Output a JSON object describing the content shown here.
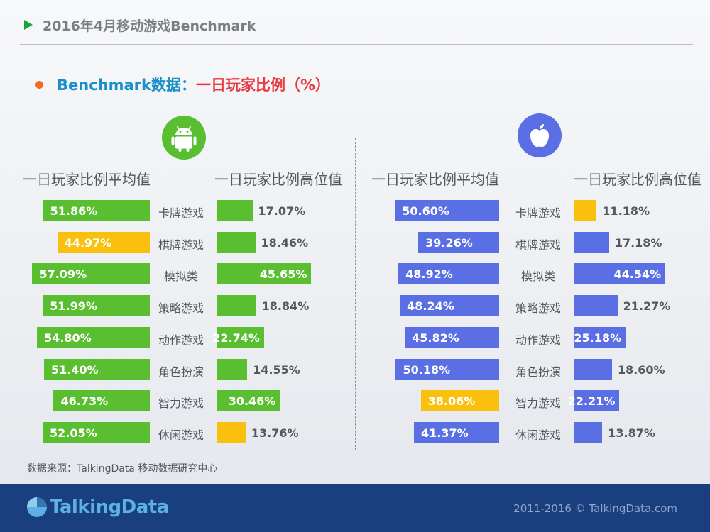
{
  "header": {
    "title": "2016年4月移动游戏Benchmark"
  },
  "subtitle": {
    "part1": "Benchmark数据：",
    "part2": "一日玩家比例（%）"
  },
  "colors": {
    "android": "#5abf30",
    "ios": "#5a6fe4",
    "highlight": "#f9c10e"
  },
  "android": {
    "icon": "android-icon",
    "avg_header": "一日玩家比例平均值",
    "high_header": "一日玩家比例高位值"
  },
  "ios": {
    "icon": "apple-icon",
    "avg_header": "一日玩家比例平均值",
    "high_header": "一日玩家比例高位值"
  },
  "chart_data": [
    {
      "type": "bar",
      "platform": "Android",
      "categories": [
        "卡牌游戏",
        "棋牌游戏",
        "模拟类",
        "策略游戏",
        "动作游戏",
        "角色扮演",
        "智力游戏",
        "休闲游戏"
      ],
      "series": [
        {
          "name": "一日玩家比例平均值",
          "values": [
            51.86,
            44.97,
            57.09,
            51.99,
            54.8,
            51.4,
            46.73,
            52.05
          ],
          "labels": [
            "51.86%",
            "44.97%",
            "57.09%",
            "51.99%",
            "54.80%",
            "51.40%",
            "46.73%",
            "52.05%"
          ],
          "highlight_index": 1
        },
        {
          "name": "一日玩家比例高位值",
          "values": [
            17.07,
            18.46,
            45.65,
            18.84,
            22.74,
            14.55,
            30.46,
            13.76
          ],
          "labels": [
            "17.07%",
            "18.46%",
            "45.65%",
            "18.84%",
            "22.74%",
            "14.55%",
            "30.46%",
            "13.76%"
          ],
          "highlight_index": 7
        }
      ]
    },
    {
      "type": "bar",
      "platform": "iOS",
      "categories": [
        "卡牌游戏",
        "棋牌游戏",
        "模拟类",
        "策略游戏",
        "动作游戏",
        "角色扮演",
        "智力游戏",
        "休闲游戏"
      ],
      "series": [
        {
          "name": "一日玩家比例平均值",
          "values": [
            50.6,
            39.26,
            48.92,
            48.24,
            45.82,
            50.18,
            38.06,
            41.37
          ],
          "labels": [
            "50.60%",
            "39.26%",
            "48.92%",
            "48.24%",
            "45.82%",
            "50.18%",
            "38.06%",
            "41.37%"
          ],
          "highlight_index": 6
        },
        {
          "name": "一日玩家比例高位值",
          "values": [
            11.18,
            17.18,
            44.54,
            21.27,
            25.18,
            18.6,
            22.21,
            13.87
          ],
          "labels": [
            "11.18%",
            "17.18%",
            "44.54%",
            "21.27%",
            "25.18%",
            "18.60%",
            "22.21%",
            "13.87%"
          ],
          "highlight_index": 0
        }
      ]
    }
  ],
  "source": "数据来源：TalkingData 移动数据研究中心",
  "footer": {
    "logo": "TalkingData",
    "copyright": "2011-2016 © TalkingData.com"
  }
}
